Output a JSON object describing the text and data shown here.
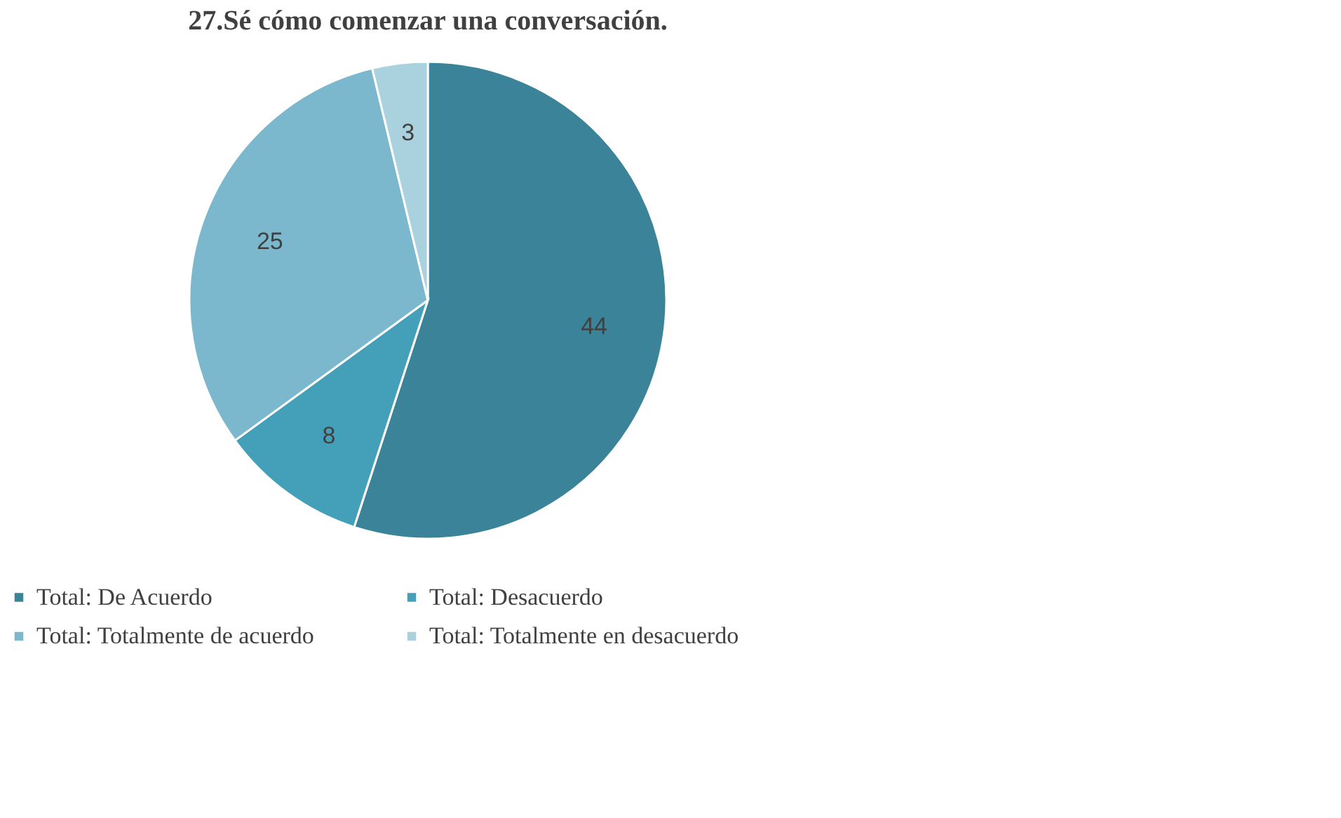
{
  "chart_data": {
    "type": "pie",
    "title": "27.Sé cómo comenzar una conversación.",
    "categories": [
      "Total: De Acuerdo",
      "Total: Desacuerdo",
      "Total: Totalmente de acuerdo",
      "Total: Totalmente en desacuerdo"
    ],
    "values": [
      44,
      8,
      25,
      3
    ],
    "colors": [
      "#3a8399",
      "#44a0b8",
      "#7bb8cd",
      "#a9d1de"
    ],
    "data_labels": true,
    "legend": "bottom"
  }
}
